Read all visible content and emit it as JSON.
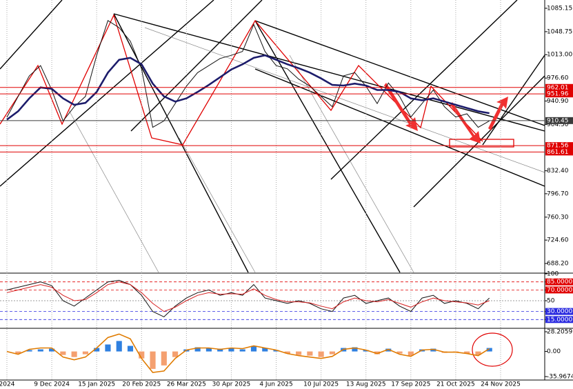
{
  "chart_data": [
    {
      "type": "line",
      "categories": [
        "2024",
        null,
        null,
        null,
        "9 Dec 2024",
        null,
        null,
        null,
        "15 Jan 2025",
        null,
        null,
        null,
        "20 Feb 2025",
        null,
        null,
        null,
        "26 Mar 2025",
        null,
        null,
        null,
        "30 Apr 2025",
        null,
        null,
        null,
        "4 Jun 2025",
        null,
        null,
        null,
        "10 Jul 2025",
        null,
        null,
        null,
        "13 Aug 2025",
        null,
        null,
        null,
        "17 Sep 2025",
        null,
        null,
        null,
        "21 Oct 2025",
        null,
        null,
        null,
        "24 Nov 2025"
      ],
      "series": [
        {
          "color": "#111111",
          "values": [
            915.6,
            948,
            980,
            996,
            958,
            910,
            932,
            948,
            1012,
            1066,
            1055,
            1034,
            991,
            900,
            910,
            937,
            964,
            985,
            996,
            1007,
            1012,
            1018,
            1060,
            1018,
            996,
            991,
            975,
            964,
            948,
            932,
            980,
            985,
            964,
            937,
            969,
            948,
            916,
            937,
            958,
            932,
            916,
            921,
            900,
            910,
            null
          ]
        },
        {
          "color": "#1c1c6b",
          "values": [
            912,
            925,
            945,
            962,
            960,
            945,
            935,
            938,
            955,
            985,
            1005,
            1008,
            998,
            968,
            948,
            940,
            945,
            955,
            966,
            978,
            990,
            998,
            1008,
            1012,
            1005,
            998,
            992,
            985,
            976,
            966,
            965,
            968,
            965,
            958,
            958,
            955,
            945,
            942,
            945,
            940,
            935,
            930,
            925,
            922,
            null
          ]
        }
      ],
      "ylim": [
        674.3,
        1098.0
      ],
      "yticks": [
        {
          "value": 1085.15,
          "label": "1085.15"
        },
        {
          "value": 1048.75,
          "label": "1048.75"
        },
        {
          "value": 1013,
          "label": "1013.00"
        },
        {
          "value": 976.6,
          "label": "976.60"
        },
        {
          "value": 940.9,
          "label": "940.90"
        },
        {
          "value": 904.5,
          "label": "904.50"
        },
        {
          "value": 832.4,
          "label": "832.40"
        },
        {
          "value": 796.7,
          "label": "796.70"
        },
        {
          "value": 760.3,
          "label": "760.30"
        },
        {
          "value": 724.6,
          "label": "724.60"
        },
        {
          "value": 688.2,
          "label": "688.20"
        }
      ],
      "levels": [
        {
          "value": 962.01,
          "label": "962.01",
          "color": "#e00000"
        },
        {
          "value": 951.96,
          "label": "951.96",
          "color": "#e00000"
        },
        {
          "value": 910.45,
          "label": "910.45",
          "color": "#3a3a3a"
        },
        {
          "value": 871.56,
          "label": "871.56",
          "color": "#e00000"
        },
        {
          "value": 861.61,
          "label": "861.61",
          "color": "#e00000"
        }
      ]
    },
    {
      "type": "line",
      "series": [
        {
          "color": "#111111",
          "values": [
            70,
            75,
            80,
            85,
            78,
            50,
            40,
            55,
            70,
            85,
            88,
            80,
            60,
            30,
            20,
            40,
            55,
            65,
            70,
            60,
            65,
            60,
            80,
            55,
            50,
            45,
            50,
            45,
            35,
            30,
            55,
            60,
            45,
            50,
            55,
            40,
            30,
            55,
            60,
            45,
            50,
            45,
            35,
            55,
            null
          ]
        },
        {
          "color": "#d62020",
          "values": [
            65,
            70,
            75,
            80,
            75,
            60,
            50,
            52,
            65,
            80,
            85,
            80,
            65,
            45,
            30,
            38,
            50,
            60,
            65,
            62,
            63,
            62,
            72,
            60,
            52,
            48,
            48,
            46,
            40,
            35,
            48,
            55,
            50,
            48,
            52,
            45,
            38,
            48,
            55,
            50,
            48,
            46,
            42,
            50,
            null
          ]
        }
      ],
      "ylim": [
        0,
        100
      ],
      "yticks": [
        100,
        {
          "value": 85,
          "label": "85.0000"
        },
        {
          "value": 70,
          "label": "70.0000"
        },
        50,
        {
          "value": 30,
          "label": "30.0000"
        },
        {
          "value": 15,
          "label": "15.0000"
        }
      ],
      "ytick_colors": [
        "#000000",
        "#e00000",
        "#e00000",
        "#000000",
        "#2a2ae0",
        "#2a2ae0"
      ]
    },
    {
      "type": "bar",
      "values": [
        0,
        -3,
        2,
        3,
        4,
        -5,
        -8,
        -4,
        5,
        10,
        15,
        8,
        -10,
        -25,
        -20,
        -8,
        3,
        6,
        5,
        4,
        5,
        3,
        8,
        5,
        2,
        -3,
        -5,
        -6,
        -8,
        -4,
        5,
        6,
        2,
        -4,
        4,
        -3,
        -6,
        3,
        4,
        -2,
        -1,
        -3,
        -5,
        5,
        null
      ],
      "positive_color": "#2f80e0",
      "negative_color": "#f4a070",
      "signal": {
        "color": "#e07b00",
        "values": [
          0,
          -4,
          3,
          5,
          5,
          -8,
          -12,
          -8,
          5,
          20,
          25,
          18,
          -10,
          -30,
          -28,
          -10,
          2,
          5,
          5,
          3,
          5,
          4,
          8,
          5,
          2,
          -3,
          -6,
          -8,
          -10,
          -7,
          3,
          5,
          2,
          -3,
          3,
          -4,
          -7,
          2,
          3,
          -1,
          -1,
          -3,
          -6,
          4,
          null
        ]
      },
      "ylim": [
        -39.92,
        32.16
      ],
      "yticks": [
        {
          "value": 28.2059,
          "label": "28.2059"
        },
        {
          "value": 0,
          "label": "0.00"
        },
        {
          "value": -35.9674,
          "label": "-35.9674"
        }
      ]
    }
  ]
}
